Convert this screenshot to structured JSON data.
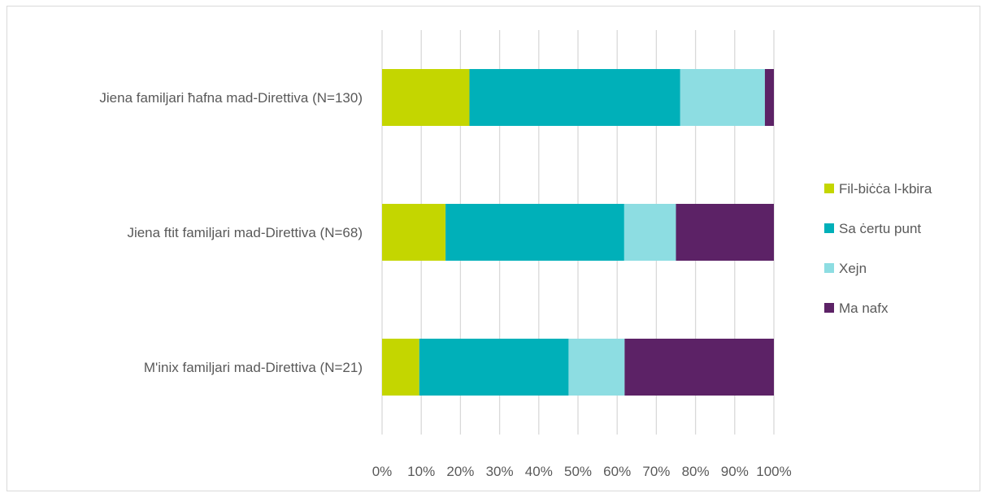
{
  "chart_data": {
    "type": "bar",
    "orientation": "horizontal",
    "stacked": "percent",
    "title": "",
    "xlabel": "",
    "ylabel": "",
    "xlim": [
      0,
      100
    ],
    "grid": true,
    "legend_position": "right",
    "categories": [
      "Jiena familjari ħafna mad-Direttiva (N=130)",
      "Jiena ftit familjari mad-Direttiva (N=68)",
      "M'inix familjari mad-Direttiva (N=21)"
    ],
    "x_ticks": [
      "0%",
      "10%",
      "20%",
      "30%",
      "40%",
      "50%",
      "60%",
      "70%",
      "80%",
      "90%",
      "100%"
    ],
    "series": [
      {
        "name": "Fil-biċċa l-kbira",
        "color": "#c4d600",
        "values": [
          22.3,
          16.2,
          9.5
        ]
      },
      {
        "name": "Sa ċertu punt",
        "color": "#00b0b9",
        "values": [
          53.8,
          45.6,
          38.1
        ]
      },
      {
        "name": "Xejn",
        "color": "#8ddde2",
        "values": [
          21.6,
          13.2,
          14.3
        ]
      },
      {
        "name": "Ma nafx",
        "color": "#5c2266",
        "values": [
          2.3,
          25.0,
          38.1
        ]
      }
    ]
  }
}
